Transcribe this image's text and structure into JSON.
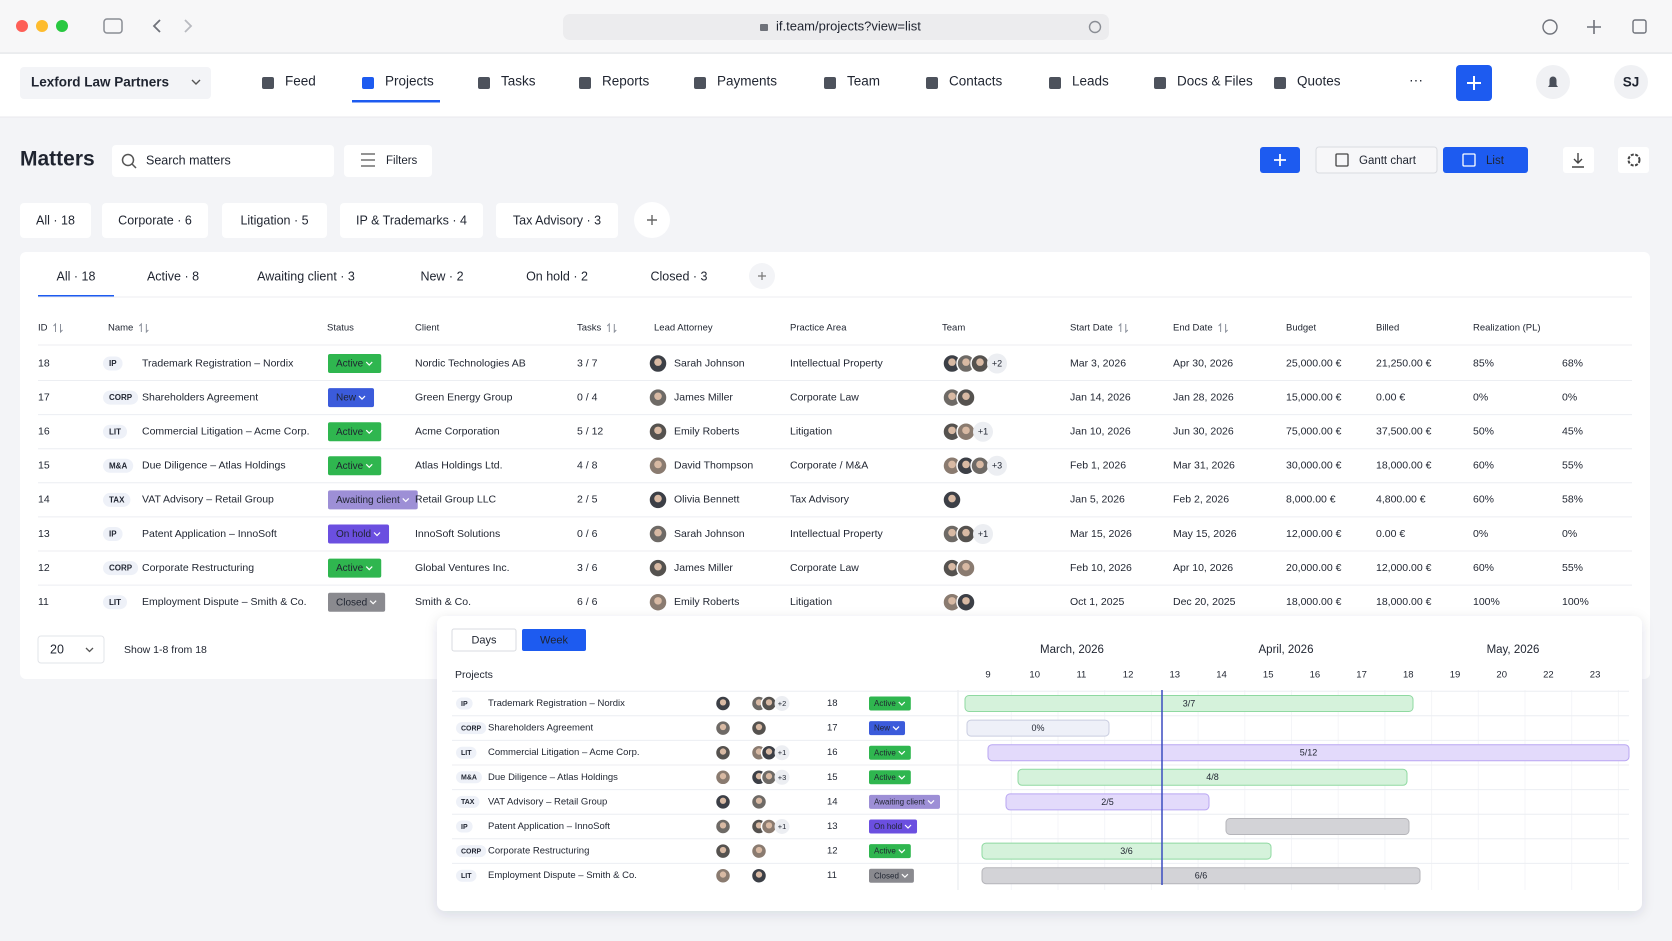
{
  "browser": {
    "url": "if.team/projects?view=list"
  },
  "nav": {
    "workspace": "Lexford Law Partners",
    "items": [
      "Feed",
      "Projects",
      "Tasks",
      "Reports",
      "Payments",
      "Team",
      "Contacts",
      "Leads",
      "Docs & Files",
      "Quotes"
    ],
    "active": 1,
    "more": "···",
    "user": "SJ"
  },
  "toolbar": {
    "title": "Matters",
    "search_placeholder": "Search matters",
    "filters": "Filters",
    "views": [
      "Gantt chart",
      "List"
    ],
    "active_view": 1
  },
  "practice_filters": [
    "All · 18",
    "Corporate · 6",
    "Litigation · 5",
    "IP & Trademarks · 4",
    "Tax Advisory · 3"
  ],
  "status_tabs": [
    "All · 18",
    "Active · 8",
    "Awaiting client · 3",
    "New · 2",
    "On hold · 2",
    "Closed · 3"
  ],
  "table": {
    "columns": [
      "ID",
      "Name",
      "Status",
      "Client",
      "Tasks",
      "Lead Attorney",
      "Practice Area",
      "Team",
      "Start Date",
      "End Date",
      "Budget",
      "Billed",
      "Realization (PL)"
    ],
    "rows": [
      {
        "id": 18,
        "tag": "IP",
        "name": "Trademark Registration – Nordix",
        "status": "Active",
        "status_color": "#2fb64f",
        "client": "Nordic Technologies AB",
        "tasks": "3 / 7",
        "attorney": "Sarah Johnson",
        "practice": "Intellectual Property",
        "team_extra": "+2",
        "start": "Mar 3, 2026",
        "end": "Apr 30, 2026",
        "end_overdue": true,
        "budget": "25,000.00 €",
        "billed": "21,250.00 €",
        "realization": "85%",
        "pl": "68%"
      },
      {
        "id": 17,
        "tag": "CORP",
        "name": "Shareholders Agreement",
        "status": "New",
        "status_color": "#3b5bdb",
        "client": "Green Energy Group",
        "tasks": "0 / 4",
        "attorney": "James Miller",
        "practice": "Corporate Law",
        "start": "Jan 14, 2026",
        "end": "Jan 28, 2026",
        "end_overdue": true,
        "budget": "15,000.00 €",
        "billed": "0.00 €",
        "realization": "0%",
        "pl": "0%"
      },
      {
        "id": 16,
        "tag": "LIT",
        "name": "Commercial Litigation – Acme Corp.",
        "status": "Active",
        "status_color": "#2fb64f",
        "client": "Acme Corporation",
        "tasks": "5 / 12",
        "attorney": "Emily Roberts",
        "practice": "Litigation",
        "team_extra": "+1",
        "start": "Jan 10, 2026",
        "end": "Jun 30, 2026",
        "end_overdue": false,
        "budget": "75,000.00 €",
        "billed": "37,500.00 €",
        "realization": "50%",
        "pl": "45%"
      },
      {
        "id": 15,
        "tag": "M&A",
        "name": "Due Diligence – Atlas Holdings",
        "status": "Active",
        "status_color": "#2fb64f",
        "client": "Atlas Holdings Ltd.",
        "tasks": "4 / 8",
        "attorney": "David Thompson",
        "practice": "Corporate / M&A",
        "team_extra": "+3",
        "start": "Feb 1, 2026",
        "end": "Mar 31, 2026",
        "end_overdue": true,
        "budget": "30,000.00 €",
        "billed": "18,000.00 €",
        "realization": "60%",
        "pl": "55%"
      },
      {
        "id": 14,
        "tag": "TAX",
        "name": "VAT Advisory – Retail Group",
        "status": "Awaiting client",
        "status_color": "#9d8fd6",
        "client": "Retail Group LLC",
        "tasks": "2 / 5",
        "attorney": "Olivia Bennett",
        "practice": "Tax Advisory",
        "start": "Jan 5, 2026",
        "end": "Feb 2, 2026",
        "end_overdue": true,
        "budget": "8,000.00 €",
        "billed": "4,800.00 €",
        "realization": "60%",
        "pl": "58%"
      },
      {
        "id": 13,
        "tag": "IP",
        "name": "Patent Application – InnoSoft",
        "status": "On hold",
        "status_color": "#6b4fe0",
        "client": "InnoSoft Solutions",
        "tasks": "0 / 6",
        "attorney": "Sarah Johnson",
        "practice": "Intellectual Property",
        "team_extra": "+1",
        "start": "Mar 15, 2026",
        "end": "May 15, 2026",
        "end_overdue": false,
        "budget": "12,000.00 €",
        "billed": "0.00 €",
        "realization": "0%",
        "pl": "0%"
      },
      {
        "id": 12,
        "tag": "CORP",
        "name": "Corporate Restructuring",
        "status": "Active",
        "status_color": "#2fb64f",
        "client": "Global Ventures Inc.",
        "tasks": "3 / 6",
        "attorney": "James Miller",
        "practice": "Corporate Law",
        "start": "Feb 10, 2026",
        "end": "Apr 10, 2026",
        "end_overdue": false,
        "budget": "20,000.00 €",
        "billed": "12,000.00 €",
        "realization": "60%",
        "pl": "55%"
      },
      {
        "id": 11,
        "tag": "LIT",
        "name": "Employment Dispute – Smith & Co.",
        "status": "Closed",
        "status_color": "#8a8a8f",
        "client": "Smith & Co.",
        "tasks": "6 / 6",
        "attorney": "Emily Roberts",
        "practice": "Litigation",
        "start": "Oct 1, 2025",
        "end": "Dec 20, 2025",
        "end_overdue": false,
        "budget": "18,000.00 €",
        "billed": "18,000.00 €",
        "realization": "100%",
        "pl": "100%"
      }
    ]
  },
  "pagination": {
    "page_size": "20",
    "summary": "Show 1-8 from 18"
  },
  "gantt": {
    "modes": [
      "Days",
      "Week"
    ],
    "active_mode": 1,
    "heading": "Projects",
    "months": [
      "March, 2026",
      "April, 2026",
      "May, 2026"
    ],
    "weeks": [
      9,
      10,
      11,
      12,
      13,
      14,
      15,
      16,
      17,
      18,
      19,
      20,
      22,
      23
    ],
    "bars": [
      {
        "label": "3/7",
        "color": "#d5f2db"
      },
      {
        "label": "0%",
        "color": "#eef0f8"
      },
      {
        "label": "5/12",
        "color": "#e3dafb"
      },
      {
        "label": "4/8",
        "color": "#d5f2db"
      },
      {
        "label": "2/5",
        "color": "#e3dafb"
      },
      {
        "color": "#d3d3d7"
      },
      {
        "label": "3/6",
        "color": "#d5f2db"
      },
      {
        "label": "6/6",
        "color": "#d3d3d7"
      }
    ]
  }
}
